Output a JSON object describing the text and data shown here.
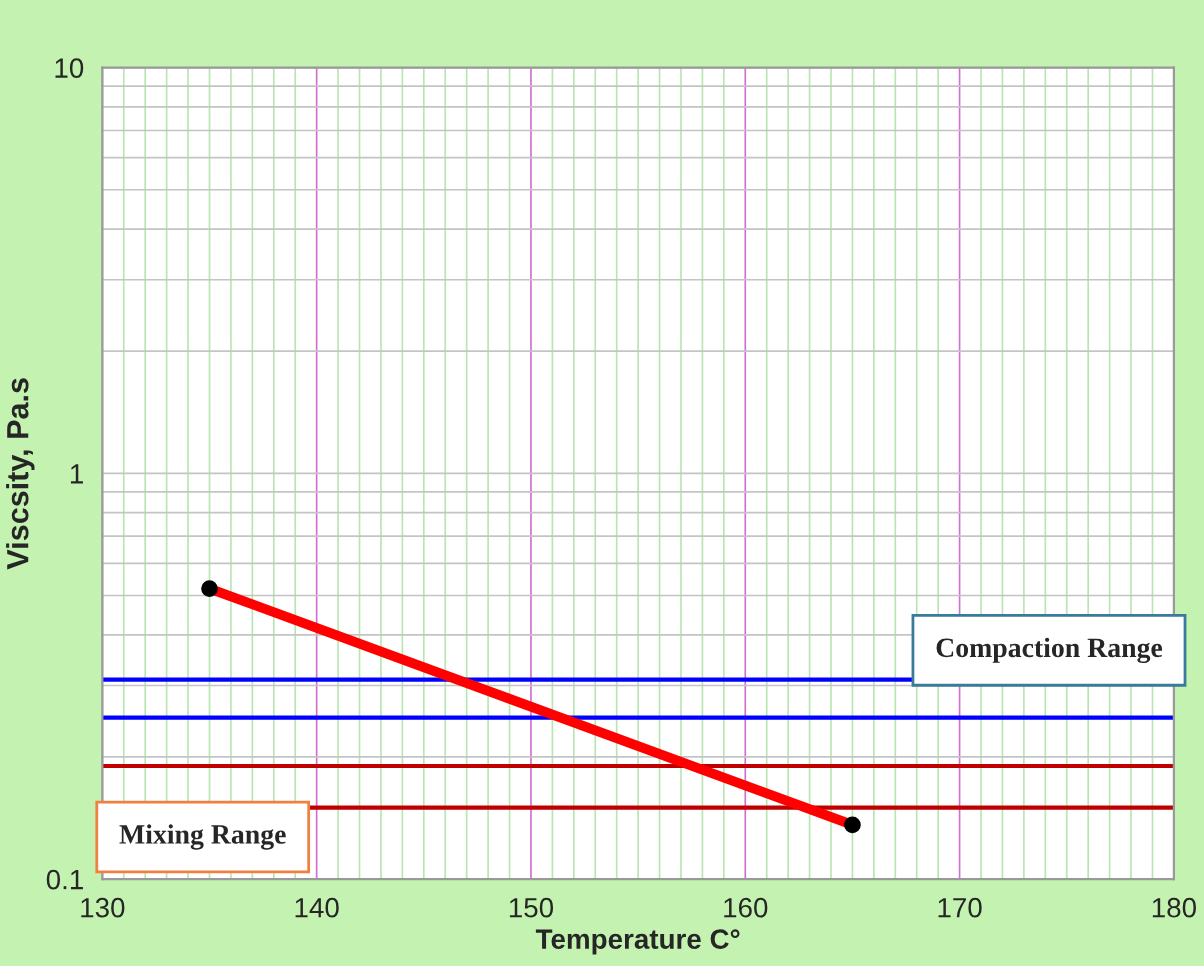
{
  "chart_data": {
    "type": "line",
    "xlabel": "Temperature C°",
    "ylabel": "Viscsity, Pa.s",
    "x": [
      135,
      165
    ],
    "series": [
      {
        "color": "#ff0000",
        "values": [
          0.52,
          0.136
        ]
      }
    ],
    "log": "y",
    "xlim": [
      130,
      180
    ],
    "ylim": [
      0.1,
      10
    ],
    "xticks": [
      130,
      {
        "value": 131,
        "label": null
      },
      {
        "value": 132,
        "label": null
      },
      {
        "value": 133,
        "label": null
      },
      {
        "value": 134,
        "label": null
      },
      {
        "value": 135,
        "label": null
      },
      {
        "value": 136,
        "label": null
      },
      {
        "value": 137,
        "label": null
      },
      {
        "value": 138,
        "label": null
      },
      {
        "value": 139,
        "label": null
      },
      140,
      {
        "value": 141,
        "label": null
      },
      {
        "value": 142,
        "label": null
      },
      {
        "value": 143,
        "label": null
      },
      {
        "value": 144,
        "label": null
      },
      {
        "value": 145,
        "label": null
      },
      {
        "value": 146,
        "label": null
      },
      {
        "value": 147,
        "label": null
      },
      {
        "value": 148,
        "label": null
      },
      {
        "value": 149,
        "label": null
      },
      150,
      {
        "value": 151,
        "label": null
      },
      {
        "value": 152,
        "label": null
      },
      {
        "value": 153,
        "label": null
      },
      {
        "value": 154,
        "label": null
      },
      {
        "value": 155,
        "label": null
      },
      {
        "value": 156,
        "label": null
      },
      {
        "value": 157,
        "label": null
      },
      {
        "value": 158,
        "label": null
      },
      {
        "value": 159,
        "label": null
      },
      160,
      {
        "value": 161,
        "label": null
      },
      {
        "value": 162,
        "label": null
      },
      {
        "value": 163,
        "label": null
      },
      {
        "value": 164,
        "label": null
      },
      {
        "value": 165,
        "label": null
      },
      {
        "value": 166,
        "label": null
      },
      {
        "value": 167,
        "label": null
      },
      {
        "value": 168,
        "label": null
      },
      {
        "value": 169,
        "label": null
      },
      170,
      {
        "value": 171,
        "label": null
      },
      {
        "value": 172,
        "label": null
      },
      {
        "value": 173,
        "label": null
      },
      {
        "value": 174,
        "label": null
      },
      {
        "value": 175,
        "label": null
      },
      {
        "value": 176,
        "label": null
      },
      {
        "value": 177,
        "label": null
      },
      {
        "value": 178,
        "label": null
      },
      {
        "value": 179,
        "label": null
      },
      180
    ],
    "yticks": [
      0.1,
      {
        "value": 0.2,
        "label": null
      },
      {
        "value": 0.3,
        "label": null
      },
      {
        "value": 0.4,
        "label": null
      },
      {
        "value": 0.5,
        "label": null
      },
      {
        "value": 0.6,
        "label": null
      },
      {
        "value": 0.7,
        "label": null
      },
      {
        "value": 0.8,
        "label": null
      },
      {
        "value": 0.9,
        "label": null
      },
      1,
      {
        "value": 2,
        "label": null
      },
      {
        "value": 3,
        "label": null
      },
      {
        "value": 4,
        "label": null
      },
      {
        "value": 5,
        "label": null
      },
      {
        "value": 6,
        "label": null
      },
      {
        "value": 7,
        "label": null
      },
      {
        "value": 8,
        "label": null
      },
      {
        "value": 9,
        "label": null
      },
      10
    ],
    "grid": true,
    "marker": "circle",
    "line_style": "solid",
    "ref_lines": [
      {
        "axis": "y",
        "value": 0.31,
        "label": "Compaction Range",
        "color": "#0000ff"
      },
      {
        "axis": "y",
        "value": 0.25,
        "color": "#0000ff"
      },
      {
        "axis": "y",
        "value": 0.19,
        "color": "#c00000"
      },
      {
        "axis": "y",
        "value": 0.15,
        "label": "Mixing Range",
        "color": "#c00000"
      }
    ]
  }
}
